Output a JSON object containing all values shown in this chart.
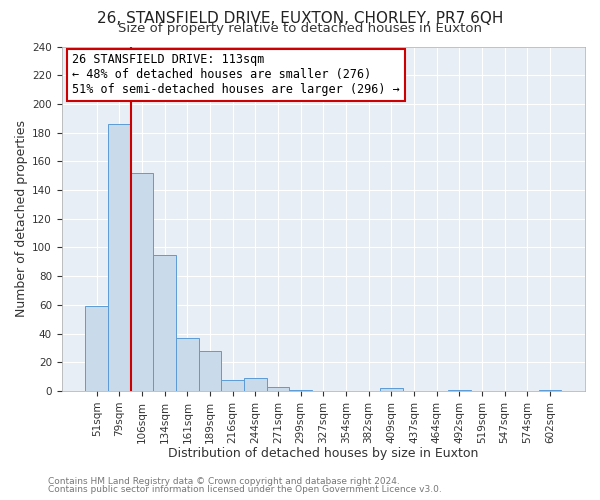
{
  "title": "26, STANSFIELD DRIVE, EUXTON, CHORLEY, PR7 6QH",
  "subtitle": "Size of property relative to detached houses in Euxton",
  "xlabel": "Distribution of detached houses by size in Euxton",
  "ylabel": "Number of detached properties",
  "bin_labels": [
    "51sqm",
    "79sqm",
    "106sqm",
    "134sqm",
    "161sqm",
    "189sqm",
    "216sqm",
    "244sqm",
    "271sqm",
    "299sqm",
    "327sqm",
    "354sqm",
    "382sqm",
    "409sqm",
    "437sqm",
    "464sqm",
    "492sqm",
    "519sqm",
    "547sqm",
    "574sqm",
    "602sqm"
  ],
  "bar_values": [
    59,
    186,
    152,
    95,
    37,
    28,
    8,
    9,
    3,
    1,
    0,
    0,
    0,
    2,
    0,
    0,
    1,
    0,
    0,
    0,
    1
  ],
  "bar_color": "#c9daea",
  "bar_edge_color": "#5b9bd5",
  "vline_x_index": 2,
  "vline_color": "#cc0000",
  "annotation_line1": "26 STANSFIELD DRIVE: 113sqm",
  "annotation_line2": "← 48% of detached houses are smaller (276)",
  "annotation_line3": "51% of semi-detached houses are larger (296) →",
  "annotation_box_edge": "#cc0000",
  "ylim": [
    0,
    240
  ],
  "yticks": [
    0,
    20,
    40,
    60,
    80,
    100,
    120,
    140,
    160,
    180,
    200,
    220,
    240
  ],
  "footer1": "Contains HM Land Registry data © Crown copyright and database right 2024.",
  "footer2": "Contains public sector information licensed under the Open Government Licence v3.0.",
  "fig_bg_color": "#ffffff",
  "plot_bg_color": "#e8eef5",
  "grid_color": "#ffffff",
  "title_fontsize": 11,
  "subtitle_fontsize": 9.5,
  "axis_label_fontsize": 9,
  "tick_fontsize": 7.5,
  "annotation_fontsize": 8.5,
  "footer_fontsize": 6.5
}
